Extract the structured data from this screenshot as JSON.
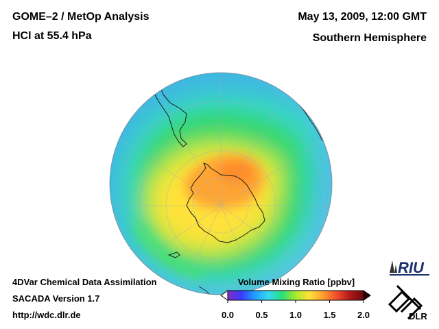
{
  "header": {
    "title": "GOME–2 / MetOp Analysis",
    "subtitle": "HCl at 55.4 hPa",
    "date": "May 13, 2009, 12:00 GMT",
    "region": "Southern Hemisphere"
  },
  "footer": {
    "line1": "4DVar Chemical Data Assimilation",
    "line2": "SACADA Version 1.7",
    "url": "http://wdc.dlr.de"
  },
  "colorbar": {
    "label": "Volume Mixing Ratio [ppbv]",
    "ticks": [
      "0.0",
      "0.5",
      "1.0",
      "1.5",
      "2.0"
    ],
    "min": 0.0,
    "max": 2.0,
    "colors": [
      "#7f2fbf",
      "#3a3aff",
      "#1fa0ff",
      "#35d8f0",
      "#28e07a",
      "#a8ea2a",
      "#ffe23a",
      "#ffa030",
      "#f0502a",
      "#b01818",
      "#6a0a0a"
    ]
  },
  "logos": {
    "riu": "RIU",
    "dlr": "DLR"
  },
  "map": {
    "projection": "orthographic",
    "hemisphere": "south",
    "ocean_color": "#3fb8e0"
  }
}
